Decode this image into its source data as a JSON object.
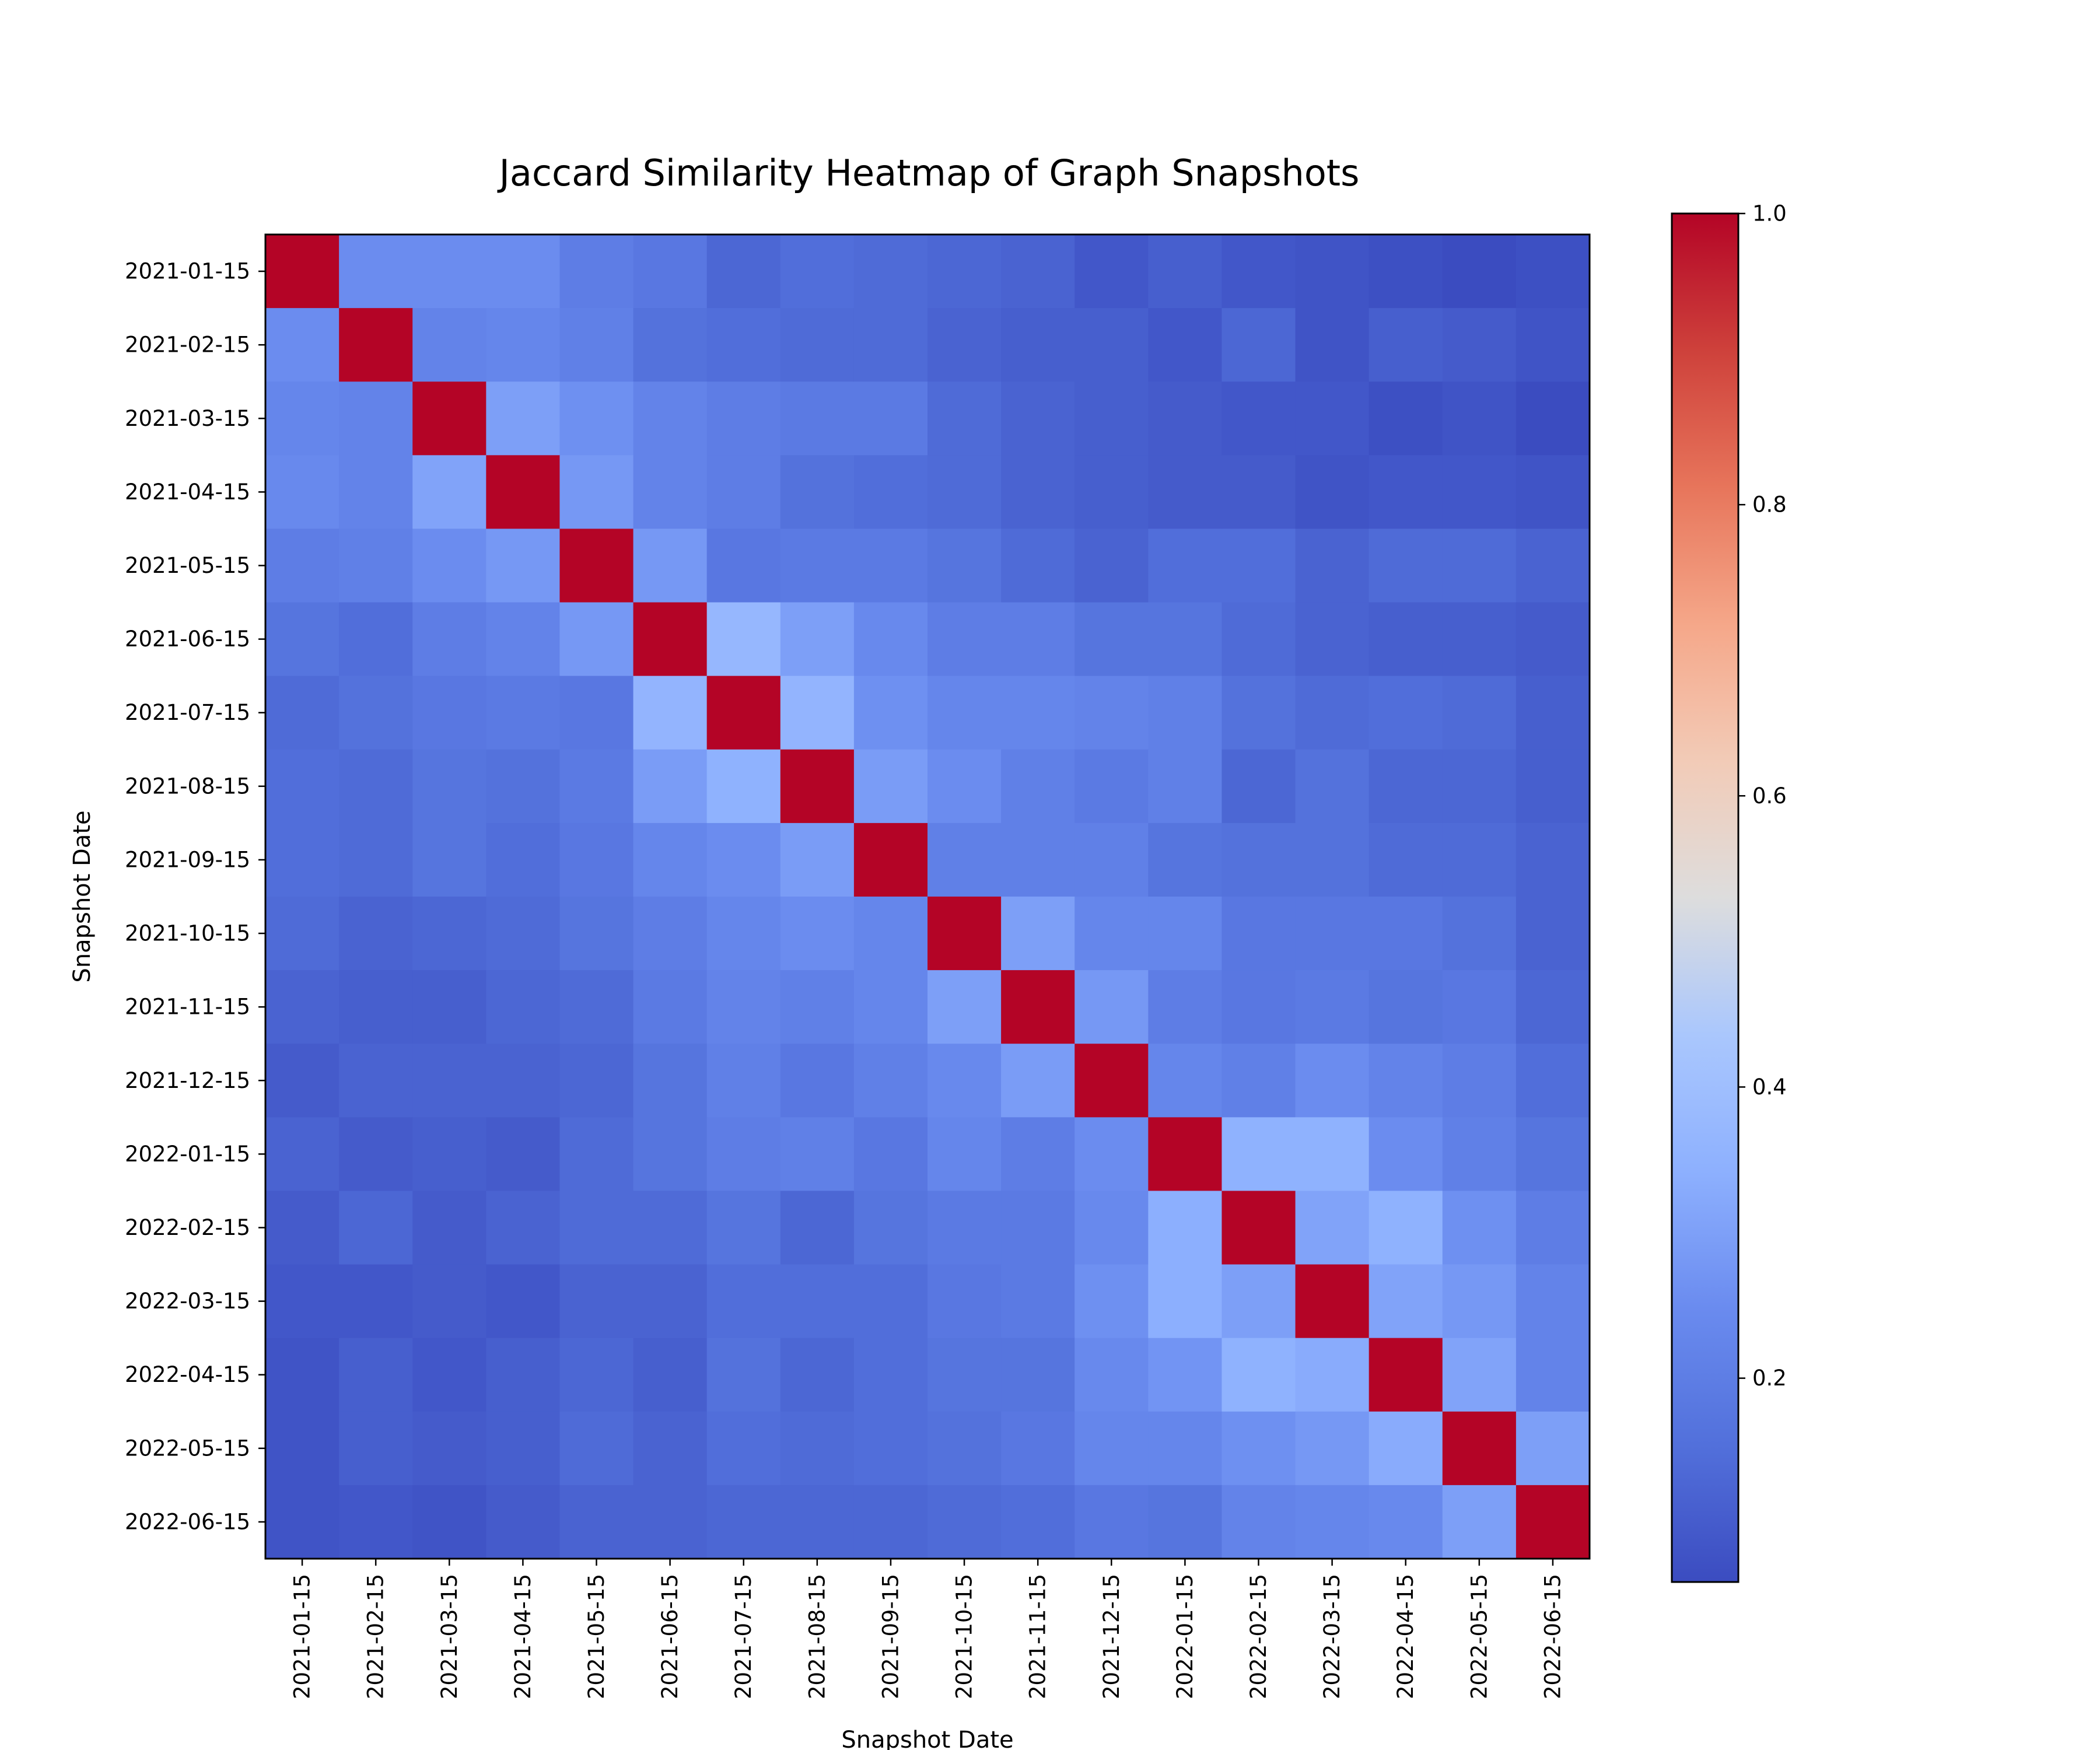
{
  "chart_data": {
    "type": "heatmap",
    "title": "Jaccard Similarity Heatmap of Graph Snapshots",
    "xlabel": "Snapshot Date",
    "ylabel": "Snapshot Date",
    "x_categories": [
      "2021-01-15",
      "2021-02-15",
      "2021-03-15",
      "2021-04-15",
      "2021-05-15",
      "2021-06-15",
      "2021-07-15",
      "2021-08-15",
      "2021-09-15",
      "2021-10-15",
      "2021-11-15",
      "2021-12-15",
      "2022-01-15",
      "2022-02-15",
      "2022-03-15",
      "2022-04-15",
      "2022-05-15",
      "2022-06-15"
    ],
    "y_categories": [
      "2021-01-15",
      "2021-02-15",
      "2021-03-15",
      "2021-04-15",
      "2021-05-15",
      "2021-06-15",
      "2021-07-15",
      "2021-08-15",
      "2021-09-15",
      "2021-10-15",
      "2021-11-15",
      "2021-12-15",
      "2022-01-15",
      "2022-02-15",
      "2022-03-15",
      "2022-04-15",
      "2022-05-15",
      "2022-06-15"
    ],
    "colormap": "coolwarm",
    "vmin": 0.06,
    "vmax": 1.0,
    "colorbar_ticks": [
      0.2,
      0.4,
      0.6,
      0.8,
      1.0
    ],
    "colorbar_tick_labels": [
      "0.2",
      "0.4",
      "0.6",
      "0.8",
      "1.0"
    ],
    "values": [
      [
        1.0,
        0.25,
        0.25,
        0.25,
        0.2,
        0.18,
        0.13,
        0.15,
        0.14,
        0.13,
        0.12,
        0.09,
        0.11,
        0.09,
        0.08,
        0.07,
        0.06,
        0.07
      ],
      [
        0.25,
        1.0,
        0.22,
        0.23,
        0.21,
        0.16,
        0.15,
        0.14,
        0.14,
        0.12,
        0.11,
        0.11,
        0.09,
        0.13,
        0.08,
        0.11,
        0.1,
        0.08
      ],
      [
        0.23,
        0.22,
        1.0,
        0.3,
        0.26,
        0.22,
        0.2,
        0.19,
        0.19,
        0.14,
        0.12,
        0.11,
        0.1,
        0.09,
        0.09,
        0.07,
        0.08,
        0.06
      ],
      [
        0.24,
        0.22,
        0.31,
        1.0,
        0.28,
        0.22,
        0.2,
        0.16,
        0.15,
        0.14,
        0.12,
        0.11,
        0.1,
        0.1,
        0.08,
        0.09,
        0.09,
        0.08
      ],
      [
        0.2,
        0.21,
        0.25,
        0.28,
        1.0,
        0.28,
        0.18,
        0.19,
        0.19,
        0.17,
        0.14,
        0.12,
        0.15,
        0.15,
        0.12,
        0.14,
        0.14,
        0.12
      ],
      [
        0.17,
        0.15,
        0.2,
        0.22,
        0.28,
        1.0,
        0.37,
        0.3,
        0.24,
        0.2,
        0.2,
        0.17,
        0.17,
        0.14,
        0.12,
        0.11,
        0.11,
        0.1
      ],
      [
        0.14,
        0.16,
        0.18,
        0.19,
        0.18,
        0.36,
        1.0,
        0.36,
        0.26,
        0.23,
        0.23,
        0.22,
        0.21,
        0.16,
        0.14,
        0.15,
        0.14,
        0.11
      ],
      [
        0.15,
        0.14,
        0.17,
        0.16,
        0.19,
        0.29,
        0.35,
        1.0,
        0.29,
        0.25,
        0.21,
        0.19,
        0.21,
        0.13,
        0.16,
        0.13,
        0.13,
        0.11
      ],
      [
        0.15,
        0.14,
        0.17,
        0.15,
        0.18,
        0.23,
        0.25,
        0.29,
        1.0,
        0.21,
        0.21,
        0.21,
        0.17,
        0.16,
        0.16,
        0.14,
        0.14,
        0.12
      ],
      [
        0.14,
        0.12,
        0.13,
        0.14,
        0.17,
        0.2,
        0.23,
        0.25,
        0.23,
        1.0,
        0.3,
        0.23,
        0.23,
        0.18,
        0.18,
        0.18,
        0.16,
        0.12
      ],
      [
        0.12,
        0.11,
        0.11,
        0.13,
        0.14,
        0.19,
        0.22,
        0.21,
        0.23,
        0.3,
        1.0,
        0.28,
        0.2,
        0.18,
        0.19,
        0.17,
        0.18,
        0.13
      ],
      [
        0.1,
        0.12,
        0.12,
        0.12,
        0.13,
        0.17,
        0.21,
        0.18,
        0.21,
        0.24,
        0.29,
        1.0,
        0.23,
        0.21,
        0.25,
        0.22,
        0.2,
        0.15
      ],
      [
        0.12,
        0.1,
        0.11,
        0.1,
        0.14,
        0.17,
        0.2,
        0.21,
        0.18,
        0.23,
        0.2,
        0.25,
        1.0,
        0.35,
        0.35,
        0.25,
        0.21,
        0.17
      ],
      [
        0.1,
        0.13,
        0.1,
        0.12,
        0.14,
        0.14,
        0.17,
        0.13,
        0.17,
        0.19,
        0.19,
        0.24,
        0.34,
        1.0,
        0.31,
        0.35,
        0.26,
        0.2
      ],
      [
        0.09,
        0.09,
        0.1,
        0.09,
        0.12,
        0.12,
        0.15,
        0.15,
        0.15,
        0.18,
        0.19,
        0.26,
        0.34,
        0.3,
        1.0,
        0.31,
        0.28,
        0.22
      ],
      [
        0.08,
        0.11,
        0.09,
        0.11,
        0.13,
        0.11,
        0.16,
        0.13,
        0.15,
        0.17,
        0.17,
        0.24,
        0.27,
        0.35,
        0.33,
        1.0,
        0.31,
        0.22
      ],
      [
        0.08,
        0.11,
        0.1,
        0.11,
        0.14,
        0.12,
        0.15,
        0.14,
        0.15,
        0.16,
        0.18,
        0.23,
        0.23,
        0.26,
        0.28,
        0.33,
        1.0,
        0.3
      ],
      [
        0.08,
        0.09,
        0.08,
        0.1,
        0.12,
        0.12,
        0.13,
        0.13,
        0.13,
        0.14,
        0.15,
        0.18,
        0.17,
        0.22,
        0.23,
        0.24,
        0.3,
        1.0
      ]
    ]
  }
}
